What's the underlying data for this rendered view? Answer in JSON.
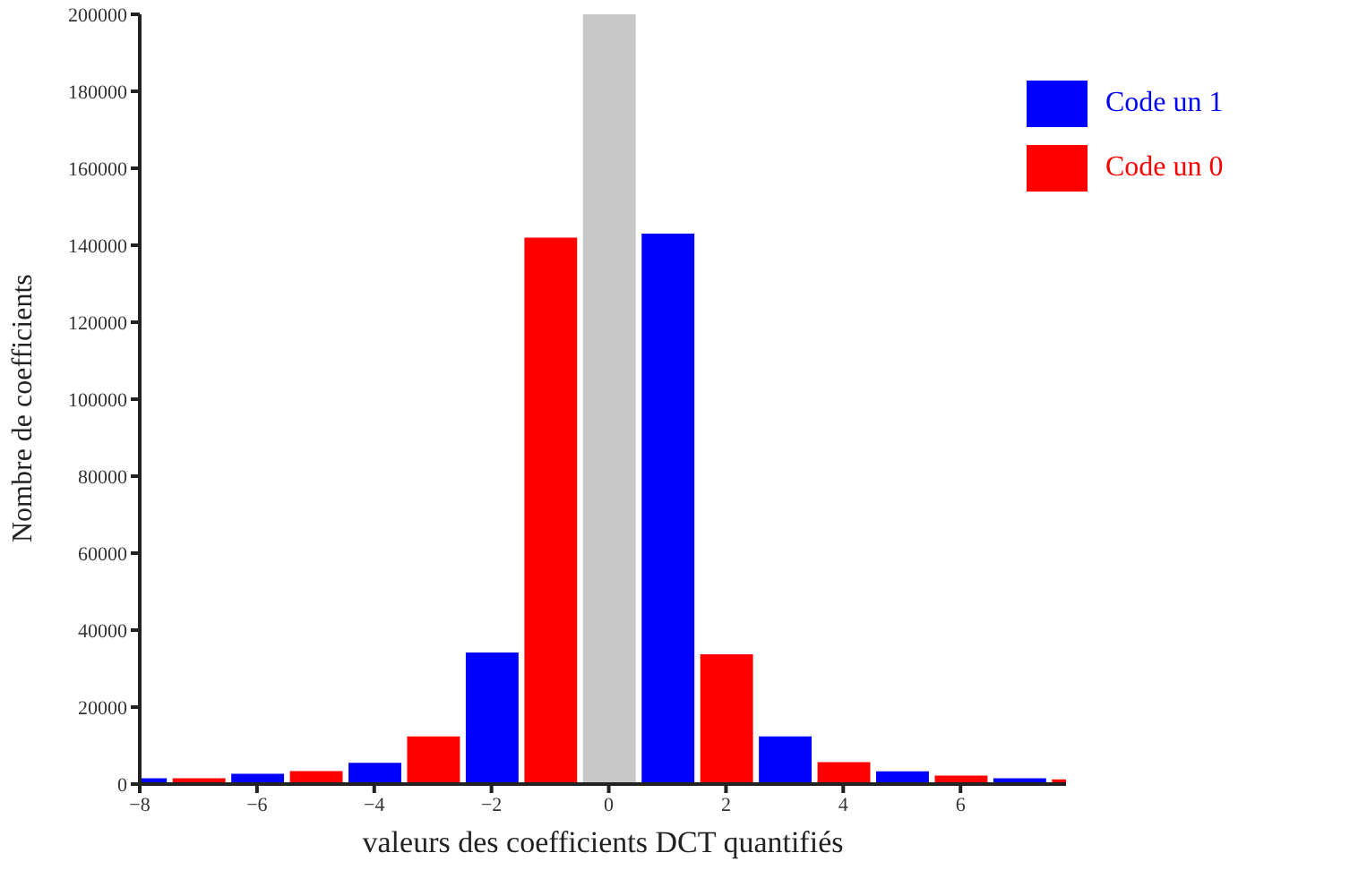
{
  "chart_data": {
    "type": "histogram",
    "xlabel": "valeurs des coefficients DCT quantifiés",
    "ylabel": "Nombre de coefficients",
    "bins": [
      -8.5,
      -7.5,
      -6.5,
      -5.5,
      -4.5,
      -3.5,
      -2.5,
      -1.5,
      -0.5,
      0.5,
      1.5,
      2.5,
      3.5,
      4.5,
      5.5,
      6.5,
      7.5,
      8.5
    ],
    "series": [
      {
        "name": "Code un 1",
        "color": "#0000ff",
        "values": [
          1500,
          null,
          2700,
          null,
          5500,
          null,
          34200,
          null,
          null,
          143000,
          null,
          12400,
          null,
          3300,
          null,
          1500,
          null
        ]
      },
      {
        "name": "Code un 0",
        "color": "#ff0000",
        "values": [
          null,
          1500,
          null,
          3400,
          null,
          12400,
          null,
          142000,
          null,
          null,
          33700,
          null,
          5700,
          null,
          2200,
          null,
          1200
        ]
      },
      {
        "color": "#c8c8c8",
        "values": [
          null,
          null,
          null,
          null,
          null,
          null,
          null,
          null,
          200000,
          null,
          null,
          null,
          null,
          null,
          null,
          null,
          null
        ]
      }
    ],
    "xlim": [
      -8,
      7.8
    ],
    "xticks": [
      -8,
      -6,
      -4,
      -2,
      0,
      2,
      4,
      6
    ],
    "ylim": [
      0,
      200000
    ],
    "yticks": [
      0,
      20000,
      40000,
      60000,
      80000,
      100000,
      120000,
      140000,
      160000,
      180000,
      200000
    ],
    "grid": false,
    "legend": "top right"
  }
}
